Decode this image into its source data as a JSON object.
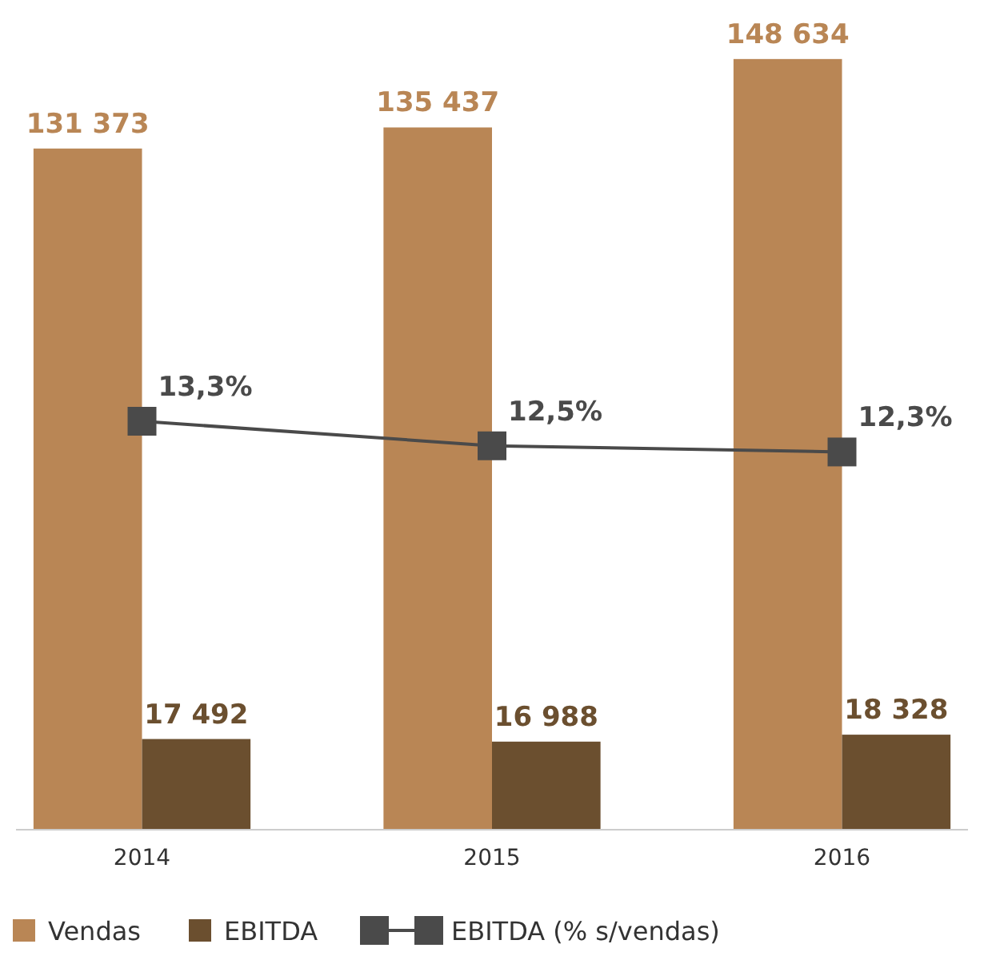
{
  "chart_data": {
    "type": "bar",
    "categories": [
      "2014",
      "2015",
      "2016"
    ],
    "series": [
      {
        "name": "Vendas",
        "color": "#b98655",
        "values": [
          131373,
          135437,
          148634
        ],
        "value_labels": [
          "131 373",
          "135 437",
          "148 634"
        ]
      },
      {
        "name": "EBITDA",
        "color": "#6b4f2f",
        "values": [
          17492,
          16988,
          18328
        ],
        "value_labels": [
          "17 492",
          "16 988",
          "18 328"
        ]
      },
      {
        "name": "EBITDA (% s/vendas)",
        "type": "line",
        "axis": "y2",
        "color": "#4a4a4a",
        "values": [
          13.3,
          12.5,
          12.3
        ],
        "value_labels": [
          "13,3%",
          "12,5%",
          "12,3%"
        ]
      }
    ],
    "tick_labels": "x",
    "marker": "square",
    "legend": "bottom",
    "grid": false
  }
}
